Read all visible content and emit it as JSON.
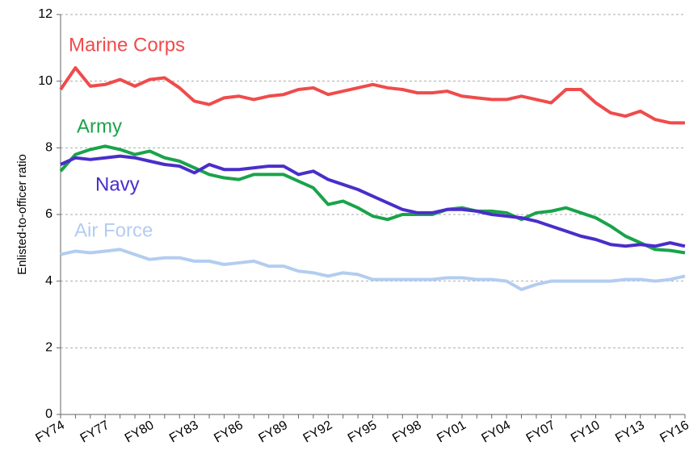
{
  "chart_data": {
    "type": "line",
    "y_label": "Enlisted-to-officer ratio",
    "categories": [
      "FY74",
      null,
      null,
      "FY77",
      null,
      null,
      "FY80",
      null,
      null,
      "FY83",
      null,
      null,
      "FY86",
      null,
      null,
      "FY89",
      null,
      null,
      "FY92",
      null,
      null,
      "FY95",
      null,
      null,
      "FY98",
      null,
      null,
      "FY01",
      null,
      null,
      "FY04",
      null,
      null,
      "FY07",
      null,
      null,
      "FY10",
      null,
      null,
      "FY13",
      null,
      null,
      "FY16"
    ],
    "series": [
      {
        "name": "Marine Corps",
        "color": "#f04b4b",
        "values": [
          9.75,
          10.4,
          9.85,
          9.9,
          10.05,
          9.85,
          10.05,
          10.1,
          9.8,
          9.4,
          9.3,
          9.5,
          9.55,
          9.45,
          9.55,
          9.6,
          9.75,
          9.8,
          9.6,
          9.7,
          9.8,
          9.9,
          9.8,
          9.75,
          9.65,
          9.65,
          9.7,
          9.55,
          9.5,
          9.45,
          9.45,
          9.55,
          9.45,
          9.35,
          9.75,
          9.75,
          9.35,
          9.05,
          8.95,
          9.1,
          8.85,
          8.75,
          8.75
        ]
      },
      {
        "name": "Army",
        "color": "#1aa34a",
        "values": [
          7.3,
          7.8,
          7.95,
          8.05,
          7.95,
          7.8,
          7.9,
          7.7,
          7.6,
          7.4,
          7.2,
          7.1,
          7.05,
          7.2,
          7.2,
          7.2,
          7.0,
          6.8,
          6.3,
          6.4,
          6.2,
          5.95,
          5.85,
          6.0,
          6.0,
          6.0,
          6.15,
          6.2,
          6.1,
          6.1,
          6.05,
          5.85,
          6.05,
          6.1,
          6.2,
          6.05,
          5.9,
          5.65,
          5.35,
          5.15,
          4.95,
          4.92,
          4.85
        ]
      },
      {
        "name": "Navy",
        "color": "#4a2ec9",
        "values": [
          7.5,
          7.7,
          7.65,
          7.7,
          7.75,
          7.7,
          7.6,
          7.5,
          7.45,
          7.25,
          7.5,
          7.35,
          7.35,
          7.4,
          7.45,
          7.45,
          7.2,
          7.3,
          7.05,
          6.9,
          6.75,
          6.55,
          6.35,
          6.15,
          6.05,
          6.05,
          6.15,
          6.15,
          6.1,
          6.0,
          5.95,
          5.9,
          5.8,
          5.65,
          5.5,
          5.35,
          5.25,
          5.1,
          5.05,
          5.1,
          5.05,
          5.15,
          5.05
        ]
      },
      {
        "name": "Air Force",
        "color": "#b3cdf0",
        "values": [
          4.8,
          4.9,
          4.85,
          4.9,
          4.95,
          4.8,
          4.65,
          4.7,
          4.7,
          4.6,
          4.6,
          4.5,
          4.55,
          4.6,
          4.45,
          4.45,
          4.3,
          4.25,
          4.15,
          4.25,
          4.2,
          4.05,
          4.05,
          4.05,
          4.05,
          4.05,
          4.1,
          4.1,
          4.05,
          4.05,
          4.0,
          3.75,
          3.9,
          4.0,
          4.0,
          4.0,
          4.0,
          4.0,
          4.05,
          4.05,
          4.0,
          4.05,
          4.15
        ]
      }
    ],
    "ylim": [
      0,
      12
    ],
    "yticks": [
      0,
      2,
      4,
      6,
      8,
      10,
      12
    ],
    "grid": true
  }
}
